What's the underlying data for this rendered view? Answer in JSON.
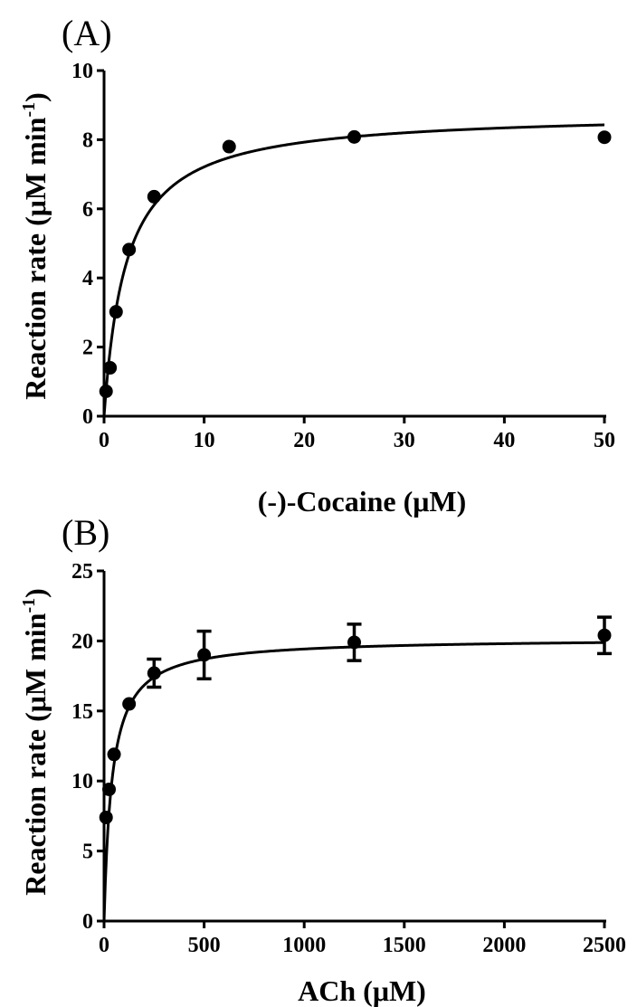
{
  "chart_data": [
    {
      "type": "scatter",
      "panel_label": "(A)",
      "xlabel": "(-)-Cocaine (μM)",
      "ylabel": "Reaction rate (μM min",
      "ylabel_sup": "-1",
      "ylabel_close": ")",
      "xlim": [
        0,
        50
      ],
      "ylim": [
        0,
        10
      ],
      "xticks": [
        0,
        10,
        20,
        30,
        40,
        50
      ],
      "yticks": [
        0,
        2,
        4,
        6,
        8,
        10
      ],
      "grid": false,
      "series": [
        {
          "x": [
            0.2,
            0.6,
            1.2,
            2.5,
            5,
            12.5,
            25,
            50
          ],
          "y": [
            0.72,
            1.4,
            3.02,
            4.82,
            6.35,
            7.8,
            8.08,
            8.07
          ],
          "fit": {
            "model": "michaelis-menten",
            "vmax": 8.8,
            "km": 2.2
          }
        }
      ]
    },
    {
      "type": "scatter",
      "panel_label": "(B)",
      "xlabel": "ACh (μM)",
      "ylabel": "Reaction rate (μM min",
      "ylabel_sup": "-1",
      "ylabel_close": ")",
      "xlim": [
        0,
        2500
      ],
      "ylim": [
        0,
        25
      ],
      "xticks": [
        0,
        500,
        1000,
        1500,
        2000,
        2500
      ],
      "yticks": [
        0,
        5,
        10,
        15,
        20,
        25
      ],
      "grid": false,
      "series": [
        {
          "x": [
            10,
            25,
            50,
            125,
            250,
            500,
            1250,
            2500
          ],
          "y": [
            7.4,
            9.4,
            11.9,
            15.5,
            17.7,
            19.0,
            19.9,
            20.4
          ],
          "yerr": [
            0,
            0,
            0,
            0,
            1.0,
            1.7,
            1.3,
            1.3
          ],
          "fit": {
            "model": "michaelis-menten",
            "vmax": 20.2,
            "km": 40
          }
        }
      ]
    }
  ]
}
